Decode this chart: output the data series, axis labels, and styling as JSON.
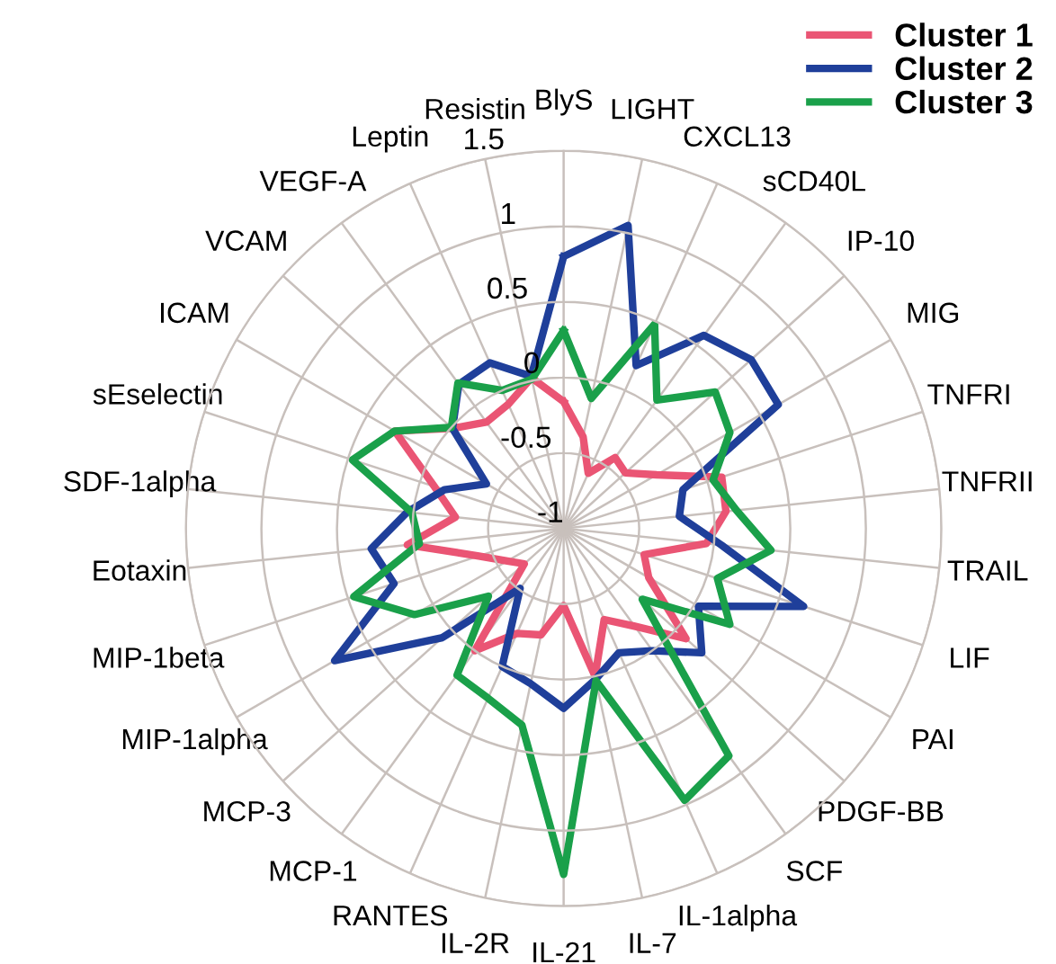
{
  "chart_data": {
    "type": "radar",
    "categories": [
      "BlyS",
      "LIGHT",
      "CXCL13",
      "sCD40L",
      "IP-10",
      "MIG",
      "TNFRI",
      "TNFRII",
      "TRAIL",
      "LIF",
      "PAI",
      "PDGF-BB",
      "SCF",
      "IL-1alpha",
      "IL-7",
      "IL-21",
      "IL-2R",
      "RANTES",
      "MCP-1",
      "MCP-3",
      "MIP-1alpha",
      "MIP-1beta",
      "Eotaxin",
      "SDF-1alpha",
      "sEselectin",
      "ICAM",
      "VCAM",
      "VEGF-A",
      "Leptin",
      "Resistin"
    ],
    "series": [
      {
        "name": "Cluster 1",
        "color": "#ea5574",
        "values": [
          -0.16,
          -0.38,
          -0.6,
          -0.42,
          -0.45,
          -0.29,
          0.1,
          0.08,
          -0.05,
          -0.44,
          -0.35,
          0.09,
          -0.2,
          -0.34,
          0.0,
          -0.49,
          -0.28,
          -0.24,
          0.0,
          -0.65,
          -0.57,
          -0.41,
          0.04,
          -0.28,
          -0.1,
          0.29,
          -0.01,
          -0.13,
          -0.1,
          0.02
        ]
      },
      {
        "name": "Cluster 2",
        "color": "#1f3f9a",
        "values": [
          0.8,
          1.05,
          0.18,
          0.58,
          0.67,
          0.64,
          -0.17,
          -0.23,
          0.05,
          0.67,
          0.03,
          0.23,
          0.0,
          -0.1,
          0.02,
          0.19,
          0.05,
          0.0,
          -0.51,
          0.08,
          0.75,
          0.18,
          0.28,
          0.04,
          -0.17,
          -0.41,
          -0.01,
          0.18,
          0.2,
          0.03
        ]
      },
      {
        "name": "Cluster 3",
        "color": "#1aa04a",
        "values": [
          0.31,
          -0.12,
          0.48,
          0.05,
          0.35,
          0.27,
          0.04,
          0.15,
          0.38,
          0.07,
          0.27,
          -0.3,
          0.86,
          0.97,
          0.03,
          1.29,
          0.33,
          0.23,
          0.2,
          -0.33,
          0.14,
          0.46,
          -0.04,
          0.01,
          0.47,
          0.29,
          0.0,
          0.19,
          0.0,
          0.01
        ]
      }
    ],
    "ylim": [
      -1,
      1.5
    ],
    "yticks": [
      -1,
      -0.5,
      0,
      0.5,
      1,
      1.5
    ],
    "grid": true,
    "legend": "top right",
    "marker": "none",
    "line_style": "solid"
  }
}
